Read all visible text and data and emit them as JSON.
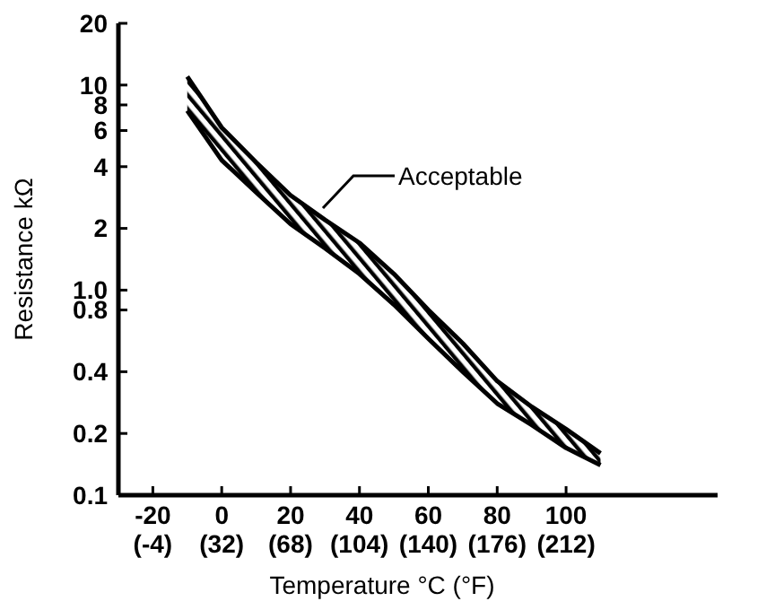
{
  "chart_data": {
    "type": "line",
    "xlabel": "Temperature °C (°F)",
    "ylabel": "Resistance kΩ",
    "log": "y",
    "grid": false,
    "marker": "none",
    "line_style": "solid",
    "x": [
      -10,
      0,
      10,
      20,
      30,
      40,
      50,
      60,
      70,
      80,
      90,
      100,
      110
    ],
    "series": [
      {
        "color": "#000000",
        "values": [
          11,
          6.2,
          4.2,
          2.9,
          2.2,
          1.7,
          1.2,
          0.8,
          0.55,
          0.36,
          0.27,
          0.21,
          0.16
        ]
      },
      {
        "color": "#000000",
        "values": [
          7.5,
          4.3,
          3.0,
          2.1,
          1.6,
          1.2,
          0.85,
          0.58,
          0.4,
          0.28,
          0.22,
          0.17,
          0.14
        ]
      }
    ],
    "xlim": [
      -30,
      144
    ],
    "xticks": [
      -20,
      0,
      20,
      40,
      60,
      80,
      100
    ],
    "x2lim": [
      -22,
      291.2
    ],
    "x2ticks": [
      {
        "value": -4,
        "label": "(-4)"
      },
      {
        "value": 32,
        "label": "(32)"
      },
      {
        "value": 68,
        "label": "(68)"
      },
      {
        "value": 104,
        "label": "(104)"
      },
      {
        "value": 140,
        "label": "(140)"
      },
      {
        "value": 176,
        "label": "(176)"
      },
      {
        "value": 212,
        "label": "(212)"
      }
    ],
    "ylim": [
      0.1,
      20
    ],
    "yticks": [
      0.1,
      0.2,
      0.4,
      {
        "value": 0.8,
        "label": "0.8"
      },
      {
        "value": 1,
        "label": "1.0"
      },
      2,
      4,
      6,
      8,
      10,
      20
    ],
    "annotations": [
      "Acceptable"
    ]
  }
}
